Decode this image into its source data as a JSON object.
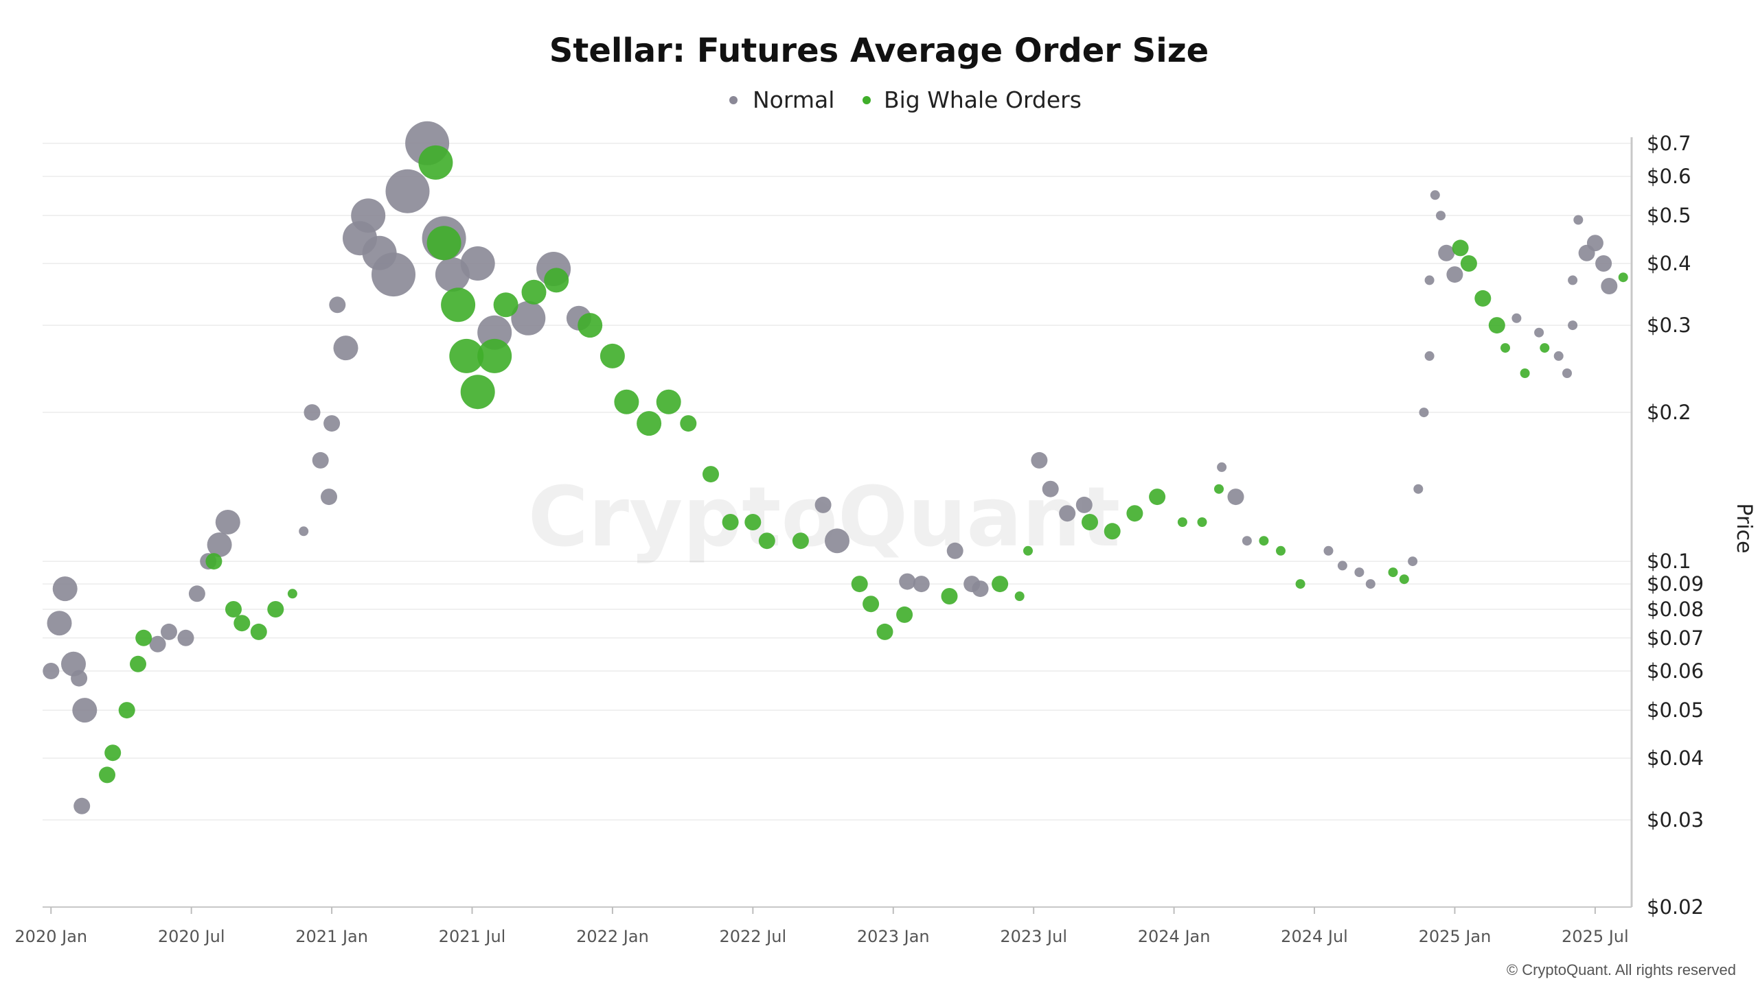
{
  "chart_data": {
    "type": "scatter",
    "title": "Stellar: Futures Average Order Size",
    "ylabel": "Price",
    "xlabel": "",
    "yscale": "log",
    "ylim": [
      0.02,
      0.72
    ],
    "xlim": [
      2019.97,
      2025.63
    ],
    "yticks": [
      {
        "value": 0.7,
        "label": "$0.7"
      },
      {
        "value": 0.6,
        "label": "$0.6"
      },
      {
        "value": 0.5,
        "label": "$0.5"
      },
      {
        "value": 0.4,
        "label": "$0.4"
      },
      {
        "value": 0.3,
        "label": "$0.3"
      },
      {
        "value": 0.2,
        "label": "$0.2"
      },
      {
        "value": 0.1,
        "label": "$0.1"
      },
      {
        "value": 0.09,
        "label": "$0.09"
      },
      {
        "value": 0.08,
        "label": "$0.08"
      },
      {
        "value": 0.07,
        "label": "$0.07"
      },
      {
        "value": 0.06,
        "label": "$0.06"
      },
      {
        "value": 0.05,
        "label": "$0.05"
      },
      {
        "value": 0.04,
        "label": "$0.04"
      },
      {
        "value": 0.03,
        "label": "$0.03"
      },
      {
        "value": 0.02,
        "label": "$0.02"
      }
    ],
    "xticks": [
      {
        "value": 2020.0,
        "label": "2020 Jan"
      },
      {
        "value": 2020.5,
        "label": "2020 Jul"
      },
      {
        "value": 2021.0,
        "label": "2021 Jan"
      },
      {
        "value": 2021.5,
        "label": "2021 Jul"
      },
      {
        "value": 2022.0,
        "label": "2022 Jan"
      },
      {
        "value": 2022.5,
        "label": "2022 Jul"
      },
      {
        "value": 2023.0,
        "label": "2023 Jan"
      },
      {
        "value": 2023.5,
        "label": "2023 Jul"
      },
      {
        "value": 2024.0,
        "label": "2024 Jan"
      },
      {
        "value": 2024.5,
        "label": "2024 Jul"
      },
      {
        "value": 2025.0,
        "label": "2025 Jan"
      },
      {
        "value": 2025.5,
        "label": "2025 Jul"
      }
    ],
    "series": [
      {
        "name": "Normal",
        "color": "#8a8896",
        "points": [
          {
            "x": 2020.0,
            "y": 0.06,
            "s": 2
          },
          {
            "x": 2020.03,
            "y": 0.075,
            "s": 3
          },
          {
            "x": 2020.05,
            "y": 0.088,
            "s": 3
          },
          {
            "x": 2020.08,
            "y": 0.062,
            "s": 3
          },
          {
            "x": 2020.1,
            "y": 0.058,
            "s": 2
          },
          {
            "x": 2020.12,
            "y": 0.05,
            "s": 3
          },
          {
            "x": 2020.11,
            "y": 0.032,
            "s": 2
          },
          {
            "x": 2020.38,
            "y": 0.068,
            "s": 2
          },
          {
            "x": 2020.42,
            "y": 0.072,
            "s": 2
          },
          {
            "x": 2020.48,
            "y": 0.07,
            "s": 2
          },
          {
            "x": 2020.52,
            "y": 0.086,
            "s": 2
          },
          {
            "x": 2020.56,
            "y": 0.1,
            "s": 2
          },
          {
            "x": 2020.6,
            "y": 0.108,
            "s": 3
          },
          {
            "x": 2020.63,
            "y": 0.12,
            "s": 3
          },
          {
            "x": 2020.9,
            "y": 0.115,
            "s": 1
          },
          {
            "x": 2020.93,
            "y": 0.2,
            "s": 2
          },
          {
            "x": 2020.96,
            "y": 0.16,
            "s": 2
          },
          {
            "x": 2020.99,
            "y": 0.135,
            "s": 2
          },
          {
            "x": 2021.0,
            "y": 0.19,
            "s": 2
          },
          {
            "x": 2021.02,
            "y": 0.33,
            "s": 2
          },
          {
            "x": 2021.05,
            "y": 0.27,
            "s": 3
          },
          {
            "x": 2021.1,
            "y": 0.45,
            "s": 4
          },
          {
            "x": 2021.13,
            "y": 0.5,
            "s": 4
          },
          {
            "x": 2021.17,
            "y": 0.42,
            "s": 4
          },
          {
            "x": 2021.22,
            "y": 0.38,
            "s": 5
          },
          {
            "x": 2021.27,
            "y": 0.56,
            "s": 5
          },
          {
            "x": 2021.34,
            "y": 0.7,
            "s": 5
          },
          {
            "x": 2021.4,
            "y": 0.45,
            "s": 5
          },
          {
            "x": 2021.43,
            "y": 0.38,
            "s": 4
          },
          {
            "x": 2021.52,
            "y": 0.4,
            "s": 4
          },
          {
            "x": 2021.58,
            "y": 0.29,
            "s": 4
          },
          {
            "x": 2021.7,
            "y": 0.31,
            "s": 4
          },
          {
            "x": 2021.79,
            "y": 0.39,
            "s": 4
          },
          {
            "x": 2021.88,
            "y": 0.31,
            "s": 3
          },
          {
            "x": 2022.75,
            "y": 0.13,
            "s": 2
          },
          {
            "x": 2022.8,
            "y": 0.11,
            "s": 3
          },
          {
            "x": 2023.05,
            "y": 0.091,
            "s": 2
          },
          {
            "x": 2023.1,
            "y": 0.09,
            "s": 2
          },
          {
            "x": 2023.22,
            "y": 0.105,
            "s": 2
          },
          {
            "x": 2023.28,
            "y": 0.09,
            "s": 2
          },
          {
            "x": 2023.31,
            "y": 0.088,
            "s": 2
          },
          {
            "x": 2023.52,
            "y": 0.16,
            "s": 2
          },
          {
            "x": 2023.56,
            "y": 0.14,
            "s": 2
          },
          {
            "x": 2023.62,
            "y": 0.125,
            "s": 2
          },
          {
            "x": 2023.68,
            "y": 0.13,
            "s": 2
          },
          {
            "x": 2024.17,
            "y": 0.155,
            "s": 1
          },
          {
            "x": 2024.22,
            "y": 0.135,
            "s": 2
          },
          {
            "x": 2024.26,
            "y": 0.11,
            "s": 1
          },
          {
            "x": 2024.55,
            "y": 0.105,
            "s": 1
          },
          {
            "x": 2024.6,
            "y": 0.098,
            "s": 1
          },
          {
            "x": 2024.66,
            "y": 0.095,
            "s": 1
          },
          {
            "x": 2024.7,
            "y": 0.09,
            "s": 1
          },
          {
            "x": 2024.85,
            "y": 0.1,
            "s": 1
          },
          {
            "x": 2024.87,
            "y": 0.14,
            "s": 1
          },
          {
            "x": 2024.89,
            "y": 0.2,
            "s": 1
          },
          {
            "x": 2024.91,
            "y": 0.26,
            "s": 1
          },
          {
            "x": 2024.91,
            "y": 0.37,
            "s": 1
          },
          {
            "x": 2024.93,
            "y": 0.55,
            "s": 1
          },
          {
            "x": 2024.95,
            "y": 0.5,
            "s": 1
          },
          {
            "x": 2024.97,
            "y": 0.42,
            "s": 2
          },
          {
            "x": 2025.0,
            "y": 0.38,
            "s": 2
          },
          {
            "x": 2025.22,
            "y": 0.31,
            "s": 1
          },
          {
            "x": 2025.3,
            "y": 0.29,
            "s": 1
          },
          {
            "x": 2025.37,
            "y": 0.26,
            "s": 1
          },
          {
            "x": 2025.4,
            "y": 0.24,
            "s": 1
          },
          {
            "x": 2025.42,
            "y": 0.3,
            "s": 1
          },
          {
            "x": 2025.42,
            "y": 0.37,
            "s": 1
          },
          {
            "x": 2025.44,
            "y": 0.49,
            "s": 1
          },
          {
            "x": 2025.47,
            "y": 0.42,
            "s": 2
          },
          {
            "x": 2025.5,
            "y": 0.44,
            "s": 2
          },
          {
            "x": 2025.53,
            "y": 0.4,
            "s": 2
          },
          {
            "x": 2025.55,
            "y": 0.36,
            "s": 2
          }
        ]
      },
      {
        "name": "Big Whale Orders",
        "color": "#3fae2a",
        "points": [
          {
            "x": 2020.2,
            "y": 0.037,
            "s": 2
          },
          {
            "x": 2020.22,
            "y": 0.041,
            "s": 2
          },
          {
            "x": 2020.27,
            "y": 0.05,
            "s": 2
          },
          {
            "x": 2020.31,
            "y": 0.062,
            "s": 2
          },
          {
            "x": 2020.33,
            "y": 0.07,
            "s": 2
          },
          {
            "x": 2020.58,
            "y": 0.1,
            "s": 2
          },
          {
            "x": 2020.65,
            "y": 0.08,
            "s": 2
          },
          {
            "x": 2020.68,
            "y": 0.075,
            "s": 2
          },
          {
            "x": 2020.74,
            "y": 0.072,
            "s": 2
          },
          {
            "x": 2020.8,
            "y": 0.08,
            "s": 2
          },
          {
            "x": 2020.86,
            "y": 0.086,
            "s": 1
          },
          {
            "x": 2021.37,
            "y": 0.64,
            "s": 4
          },
          {
            "x": 2021.4,
            "y": 0.44,
            "s": 4
          },
          {
            "x": 2021.45,
            "y": 0.33,
            "s": 4
          },
          {
            "x": 2021.48,
            "y": 0.26,
            "s": 4
          },
          {
            "x": 2021.52,
            "y": 0.22,
            "s": 4
          },
          {
            "x": 2021.58,
            "y": 0.26,
            "s": 4
          },
          {
            "x": 2021.62,
            "y": 0.33,
            "s": 3
          },
          {
            "x": 2021.72,
            "y": 0.35,
            "s": 3
          },
          {
            "x": 2021.8,
            "y": 0.37,
            "s": 3
          },
          {
            "x": 2021.92,
            "y": 0.3,
            "s": 3
          },
          {
            "x": 2022.0,
            "y": 0.26,
            "s": 3
          },
          {
            "x": 2022.05,
            "y": 0.21,
            "s": 3
          },
          {
            "x": 2022.13,
            "y": 0.19,
            "s": 3
          },
          {
            "x": 2022.2,
            "y": 0.21,
            "s": 3
          },
          {
            "x": 2022.27,
            "y": 0.19,
            "s": 2
          },
          {
            "x": 2022.35,
            "y": 0.15,
            "s": 2
          },
          {
            "x": 2022.42,
            "y": 0.12,
            "s": 2
          },
          {
            "x": 2022.5,
            "y": 0.12,
            "s": 2
          },
          {
            "x": 2022.55,
            "y": 0.11,
            "s": 2
          },
          {
            "x": 2022.67,
            "y": 0.11,
            "s": 2
          },
          {
            "x": 2022.88,
            "y": 0.09,
            "s": 2
          },
          {
            "x": 2022.92,
            "y": 0.082,
            "s": 2
          },
          {
            "x": 2022.97,
            "y": 0.072,
            "s": 2
          },
          {
            "x": 2023.04,
            "y": 0.078,
            "s": 2
          },
          {
            "x": 2023.2,
            "y": 0.085,
            "s": 2
          },
          {
            "x": 2023.38,
            "y": 0.09,
            "s": 2
          },
          {
            "x": 2023.45,
            "y": 0.085,
            "s": 1
          },
          {
            "x": 2023.48,
            "y": 0.105,
            "s": 1
          },
          {
            "x": 2023.7,
            "y": 0.12,
            "s": 2
          },
          {
            "x": 2023.78,
            "y": 0.115,
            "s": 2
          },
          {
            "x": 2023.86,
            "y": 0.125,
            "s": 2
          },
          {
            "x": 2023.94,
            "y": 0.135,
            "s": 2
          },
          {
            "x": 2024.03,
            "y": 0.12,
            "s": 1
          },
          {
            "x": 2024.1,
            "y": 0.12,
            "s": 1
          },
          {
            "x": 2024.16,
            "y": 0.14,
            "s": 1
          },
          {
            "x": 2024.32,
            "y": 0.11,
            "s": 1
          },
          {
            "x": 2024.38,
            "y": 0.105,
            "s": 1
          },
          {
            "x": 2024.45,
            "y": 0.09,
            "s": 1
          },
          {
            "x": 2024.78,
            "y": 0.095,
            "s": 1
          },
          {
            "x": 2024.82,
            "y": 0.092,
            "s": 1
          },
          {
            "x": 2025.02,
            "y": 0.43,
            "s": 2
          },
          {
            "x": 2025.05,
            "y": 0.4,
            "s": 2
          },
          {
            "x": 2025.1,
            "y": 0.34,
            "s": 2
          },
          {
            "x": 2025.15,
            "y": 0.3,
            "s": 2
          },
          {
            "x": 2025.18,
            "y": 0.27,
            "s": 1
          },
          {
            "x": 2025.25,
            "y": 0.24,
            "s": 1
          },
          {
            "x": 2025.32,
            "y": 0.27,
            "s": 1
          },
          {
            "x": 2025.6,
            "y": 0.375,
            "s": 1
          }
        ]
      }
    ]
  },
  "legend": {
    "normal_label": "Normal",
    "whale_label": "Big Whale Orders"
  },
  "watermark": "CryptoQuant",
  "credit": "© CryptoQuant. All rights reserved"
}
